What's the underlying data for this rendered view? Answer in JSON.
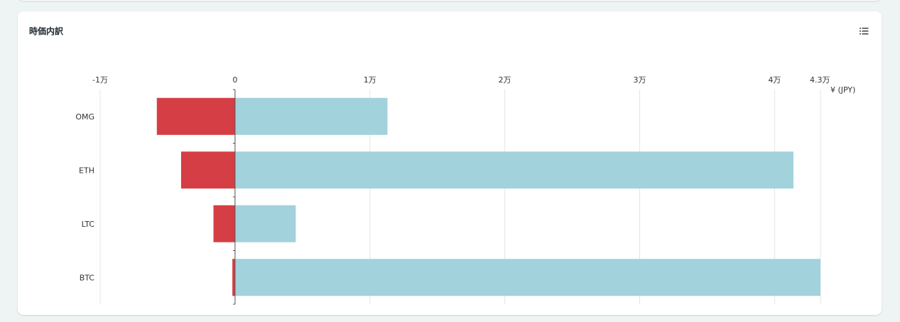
{
  "card": {
    "title": "時価内訳",
    "menu_icon": "list-icon"
  },
  "chart_data": {
    "type": "bar",
    "orientation": "horizontal",
    "stacked": true,
    "categories": [
      "OMG",
      "ETH",
      "LTC",
      "BTC"
    ],
    "unit_label": "¥ (JPY)",
    "xlim": [
      -10000,
      43400
    ],
    "ticks": [
      {
        "value": -10000,
        "label": "-1万"
      },
      {
        "value": 0,
        "label": "0"
      },
      {
        "value": 10000,
        "label": "1万"
      },
      {
        "value": 20000,
        "label": "2万"
      },
      {
        "value": 30000,
        "label": "3万"
      },
      {
        "value": 40000,
        "label": "4万"
      },
      {
        "value": 43400,
        "label": "4.3万"
      }
    ],
    "series": [
      {
        "values": [
          -5800,
          -4000,
          -1600,
          -200
        ],
        "color": "#d63e45"
      },
      {
        "values": [
          11300,
          41400,
          4500,
          43400
        ],
        "color": "#a2d2db"
      }
    ],
    "grid": true
  }
}
